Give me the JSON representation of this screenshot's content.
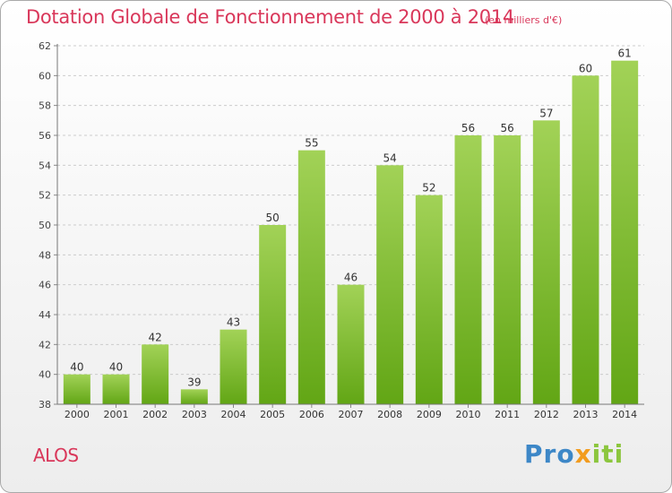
{
  "header": {
    "title": "Dotation Globale de Fonctionnement de 2000 à 2014",
    "subtitle": "(en milliers d'€)"
  },
  "footer": {
    "commune": "ALOS",
    "brand_parts": [
      "Pro",
      "x",
      "iti"
    ]
  },
  "colors": {
    "title": "#d9375a",
    "bar_light": "#a2d257",
    "bar_dark": "#62a615",
    "grid": "#cccccc",
    "brand_blue": "#3d87c7",
    "brand_orange": "#f29c1f",
    "brand_green": "#8cc63e"
  },
  "chart_data": {
    "type": "bar",
    "categories": [
      "2000",
      "2001",
      "2002",
      "2003",
      "2004",
      "2005",
      "2006",
      "2007",
      "2008",
      "2009",
      "2010",
      "2011",
      "2012",
      "2013",
      "2014"
    ],
    "values": [
      40,
      40,
      42,
      39,
      43,
      50,
      55,
      46,
      54,
      52,
      56,
      56,
      57,
      60,
      61
    ],
    "data_labels": [
      "40",
      "40",
      "42",
      "39",
      "43",
      "50",
      "55",
      "46",
      "54",
      "52",
      "56",
      "56",
      "57",
      "60",
      "61"
    ],
    "title": "Dotation Globale de Fonctionnement de 2000 à 2014",
    "xlabel": "",
    "ylabel": "",
    "ylim": [
      38,
      62
    ],
    "yticks": [
      38,
      40,
      42,
      44,
      46,
      48,
      50,
      52,
      54,
      56,
      58,
      60,
      62
    ],
    "grid": true
  }
}
